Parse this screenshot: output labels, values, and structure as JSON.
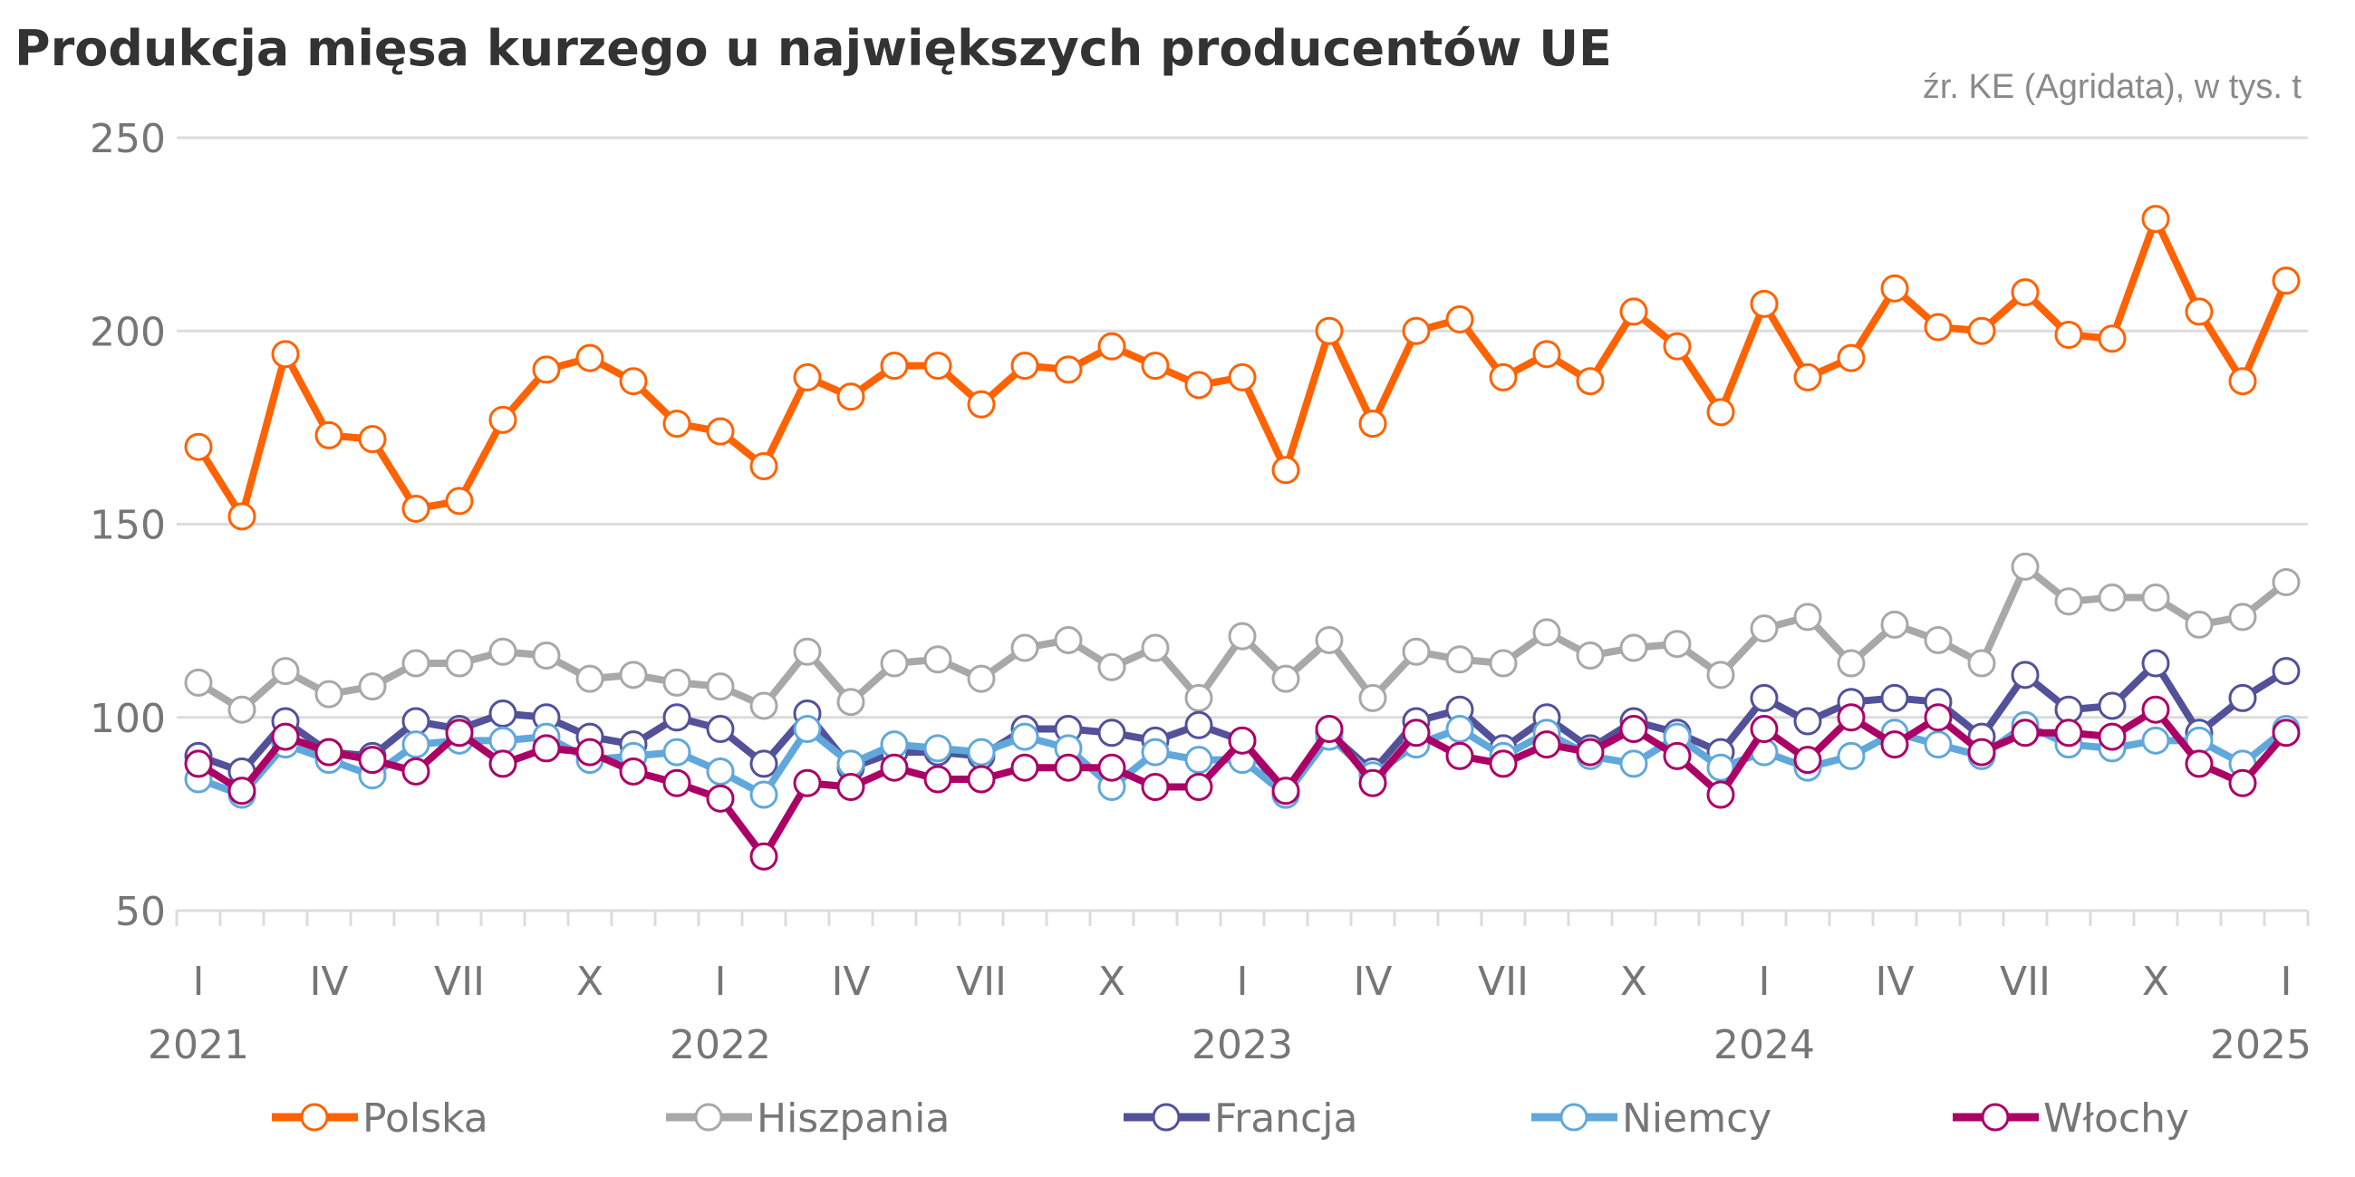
{
  "chart_data": {
    "type": "line",
    "title": "Produkcja mięsa kurzego u największych producentów UE",
    "source": "źr. KE (Agridata), w tys. t",
    "ylim": [
      50,
      250
    ],
    "yticks": [
      50,
      100,
      150,
      200,
      250
    ],
    "grid": true,
    "legend_position": "bottom",
    "x_month_labels": [
      "I",
      "IV",
      "VII",
      "X",
      "I",
      "IV",
      "VII",
      "X",
      "I",
      "IV",
      "VII",
      "X",
      "I",
      "IV",
      "VII",
      "X",
      "I"
    ],
    "x_year_labels": [
      "2021",
      "2022",
      "2023",
      "2024",
      "2025"
    ],
    "x_start": "2021-01",
    "x_end": "2025-01",
    "series": [
      {
        "name": "Polska",
        "color": "#FF6200",
        "values": [
          170,
          152,
          194,
          173,
          172,
          154,
          156,
          177,
          190,
          193,
          187,
          176,
          174,
          165,
          188,
          183,
          191,
          191,
          181,
          191,
          190,
          196,
          191,
          186,
          188,
          164,
          200,
          176,
          200,
          203,
          188,
          194,
          187,
          205,
          196,
          179,
          207,
          188,
          193,
          211,
          201,
          200,
          210,
          199,
          198,
          229,
          205,
          187,
          213
        ]
      },
      {
        "name": "Hiszpania",
        "color": "#A8A8A8",
        "values": [
          109,
          102,
          112,
          106,
          108,
          114,
          114,
          117,
          116,
          110,
          111,
          109,
          108,
          103,
          117,
          104,
          114,
          115,
          110,
          118,
          120,
          113,
          118,
          105,
          121,
          110,
          120,
          105,
          117,
          115,
          114,
          122,
          116,
          118,
          119,
          111,
          123,
          126,
          114,
          124,
          120,
          114,
          139,
          130,
          131,
          131,
          124,
          126,
          135
        ]
      },
      {
        "name": "Francja",
        "color": "#525199",
        "values": [
          90,
          86,
          99,
          91,
          90,
          99,
          97,
          101,
          100,
          95,
          93,
          100,
          97,
          88,
          101,
          87,
          91,
          91,
          90,
          97,
          97,
          96,
          94,
          98,
          94,
          80,
          96,
          86,
          99,
          102,
          92,
          100,
          92,
          99,
          96,
          91,
          105,
          99,
          104,
          105,
          104,
          95,
          111,
          102,
          103,
          114,
          96,
          105,
          112
        ]
      },
      {
        "name": "Niemcy",
        "color": "#60A8DC",
        "values": [
          84,
          80,
          93,
          89,
          85,
          93,
          94,
          94,
          95,
          89,
          90,
          91,
          86,
          80,
          97,
          88,
          93,
          92,
          91,
          95,
          92,
          82,
          91,
          89,
          89,
          80,
          95,
          85,
          93,
          97,
          90,
          96,
          90,
          88,
          95,
          87,
          91,
          87,
          90,
          96,
          93,
          90,
          98,
          93,
          92,
          94,
          94,
          88,
          97
        ]
      },
      {
        "name": "Włochy",
        "color": "#AB0066",
        "values": [
          88,
          81,
          95,
          91,
          89,
          86,
          96,
          88,
          92,
          91,
          86,
          83,
          79,
          64,
          83,
          82,
          87,
          84,
          84,
          87,
          87,
          87,
          82,
          82,
          94,
          81,
          97,
          83,
          96,
          90,
          88,
          93,
          91,
          97,
          90,
          80,
          97,
          89,
          100,
          93,
          100,
          91,
          96,
          96,
          95,
          102,
          88,
          83,
          96
        ]
      }
    ]
  }
}
